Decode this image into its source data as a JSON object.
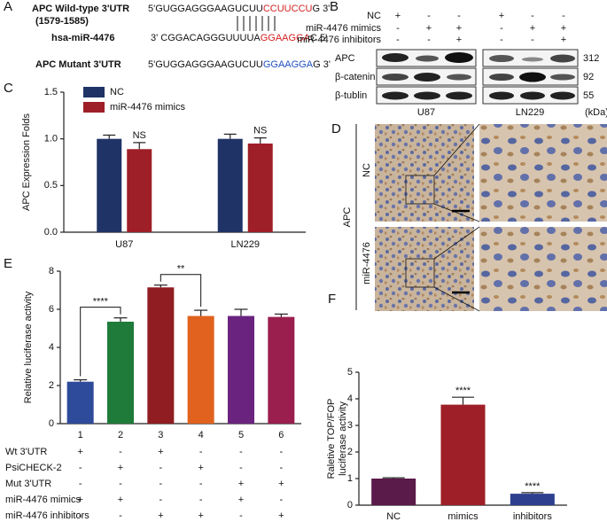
{
  "panel_a": {
    "label": "A",
    "wild_type": {
      "name": "APC Wild-type 3'UTR",
      "position": "(1579-1585)",
      "seq": [
        "5'GUGGAGGGAAGUCUU",
        "CCUUCCU",
        "G 3'"
      ]
    },
    "mirna": {
      "name": "hsa-miR-4476",
      "seq": [
        "3' CGGACAGGGUUUUA",
        "GGAAGGA",
        "C 5'"
      ]
    },
    "mutant": {
      "name": "APC Mutant  3'UTR",
      "seq": [
        "5'GUGGAGGGAAGUCUU",
        "GGAAGGA",
        "G 3'"
      ]
    }
  },
  "panel_b": {
    "label": "B",
    "conditions": [
      {
        "name": "NC",
        "signs": [
          "+",
          "-",
          "-",
          "+",
          "-",
          "-"
        ]
      },
      {
        "name": "miR-4476 mimics",
        "signs": [
          "-",
          "+",
          "+",
          "-",
          "+",
          "+"
        ]
      },
      {
        "name": "miR-4476 inhibitors",
        "signs": [
          "-",
          "-",
          "+",
          "-",
          "-",
          "+"
        ]
      }
    ],
    "proteins": [
      {
        "name": "APC",
        "size": 312
      },
      {
        "name": "β-catenin",
        "size": 92
      },
      {
        "name": "β-tublin",
        "size": 55
      }
    ],
    "unit": "(kDa)",
    "cell_lines": [
      "U87",
      "LN229"
    ]
  },
  "panel_d": {
    "label": "D",
    "stain": "APC",
    "groups": [
      "NC",
      "miR-4476"
    ]
  },
  "chart_data": [
    {
      "panel_label": "C",
      "type": "grouped_bar",
      "ylabel": "APC Expression Folds",
      "categories": [
        "U87",
        "LN229"
      ],
      "series": [
        {
          "name": "NC",
          "color": "#1f3366",
          "values": [
            1.0,
            1.0
          ],
          "errors": [
            0.04,
            0.05
          ]
        },
        {
          "name": "miR-4476 mimics",
          "color": "#9e1f27",
          "values": [
            0.89,
            0.95
          ],
          "errors": [
            0.07,
            0.06
          ]
        }
      ],
      "annotations": [
        "NS",
        "NS"
      ],
      "ylim": [
        0,
        1.5
      ],
      "yticks": [
        {
          "value": 0,
          "label": "0.0"
        },
        {
          "value": 0.5,
          "label": "0.5"
        },
        {
          "value": 1,
          "label": "1.0"
        },
        {
          "value": 1.5,
          "label": "1.5"
        }
      ],
      "legend": "upper left"
    },
    {
      "panel_label": "E",
      "type": "bar",
      "ylabel": "Relative luciferase activity",
      "categories": [
        "1",
        "2",
        "3",
        "4",
        "5",
        "6"
      ],
      "values": [
        2.2,
        5.35,
        7.15,
        5.65,
        5.65,
        5.6
      ],
      "errors": [
        0.1,
        0.2,
        0.12,
        0.3,
        0.35,
        0.15
      ],
      "colors": [
        "#2e4b9b",
        "#1e7b3a",
        "#8f1d22",
        "#e0621e",
        "#6b2380",
        "#9a1e4e"
      ],
      "ylim": [
        0,
        8
      ],
      "yticks": [
        0,
        2,
        4,
        6,
        8
      ],
      "significance": [
        {
          "label": "****",
          "bars": [
            "1",
            "2"
          ]
        },
        {
          "label": "**",
          "bars": [
            "3",
            "4"
          ]
        }
      ],
      "conditions": [
        {
          "name": "Wt 3'UTR",
          "signs": [
            "+",
            "-",
            "+",
            "-",
            "-",
            "-"
          ]
        },
        {
          "name": "PsiCHECK-2",
          "signs": [
            "-",
            "+",
            "-",
            "+",
            "-",
            "-"
          ]
        },
        {
          "name": "Mut 3'UTR",
          "signs": [
            "-",
            "-",
            "-",
            "-",
            "+",
            "+"
          ]
        },
        {
          "name": "miR-4476 mimics",
          "signs": [
            "+",
            "+",
            "-",
            "-",
            "+",
            "-"
          ]
        },
        {
          "name": "miR-4476 inhibitors",
          "signs": [
            "-",
            "-",
            "+",
            "+",
            "-",
            "+"
          ]
        }
      ]
    },
    {
      "panel_label": "F",
      "type": "bar",
      "ylabel": [
        "Raletive TOP/FOP",
        "luciferase activity"
      ],
      "categories": [
        "NC",
        "mimics",
        "inhibitors"
      ],
      "values": [
        1.0,
        3.78,
        0.43
      ],
      "errors": [
        0.03,
        0.28,
        0.04
      ],
      "colors": [
        "#5a1a4a",
        "#9e1f27",
        "#2e3f8f"
      ],
      "value_annotations": [
        null,
        "****",
        "****"
      ],
      "ylim": [
        0,
        5
      ],
      "yticks": [
        0,
        1,
        2,
        3,
        4,
        5
      ]
    }
  ]
}
